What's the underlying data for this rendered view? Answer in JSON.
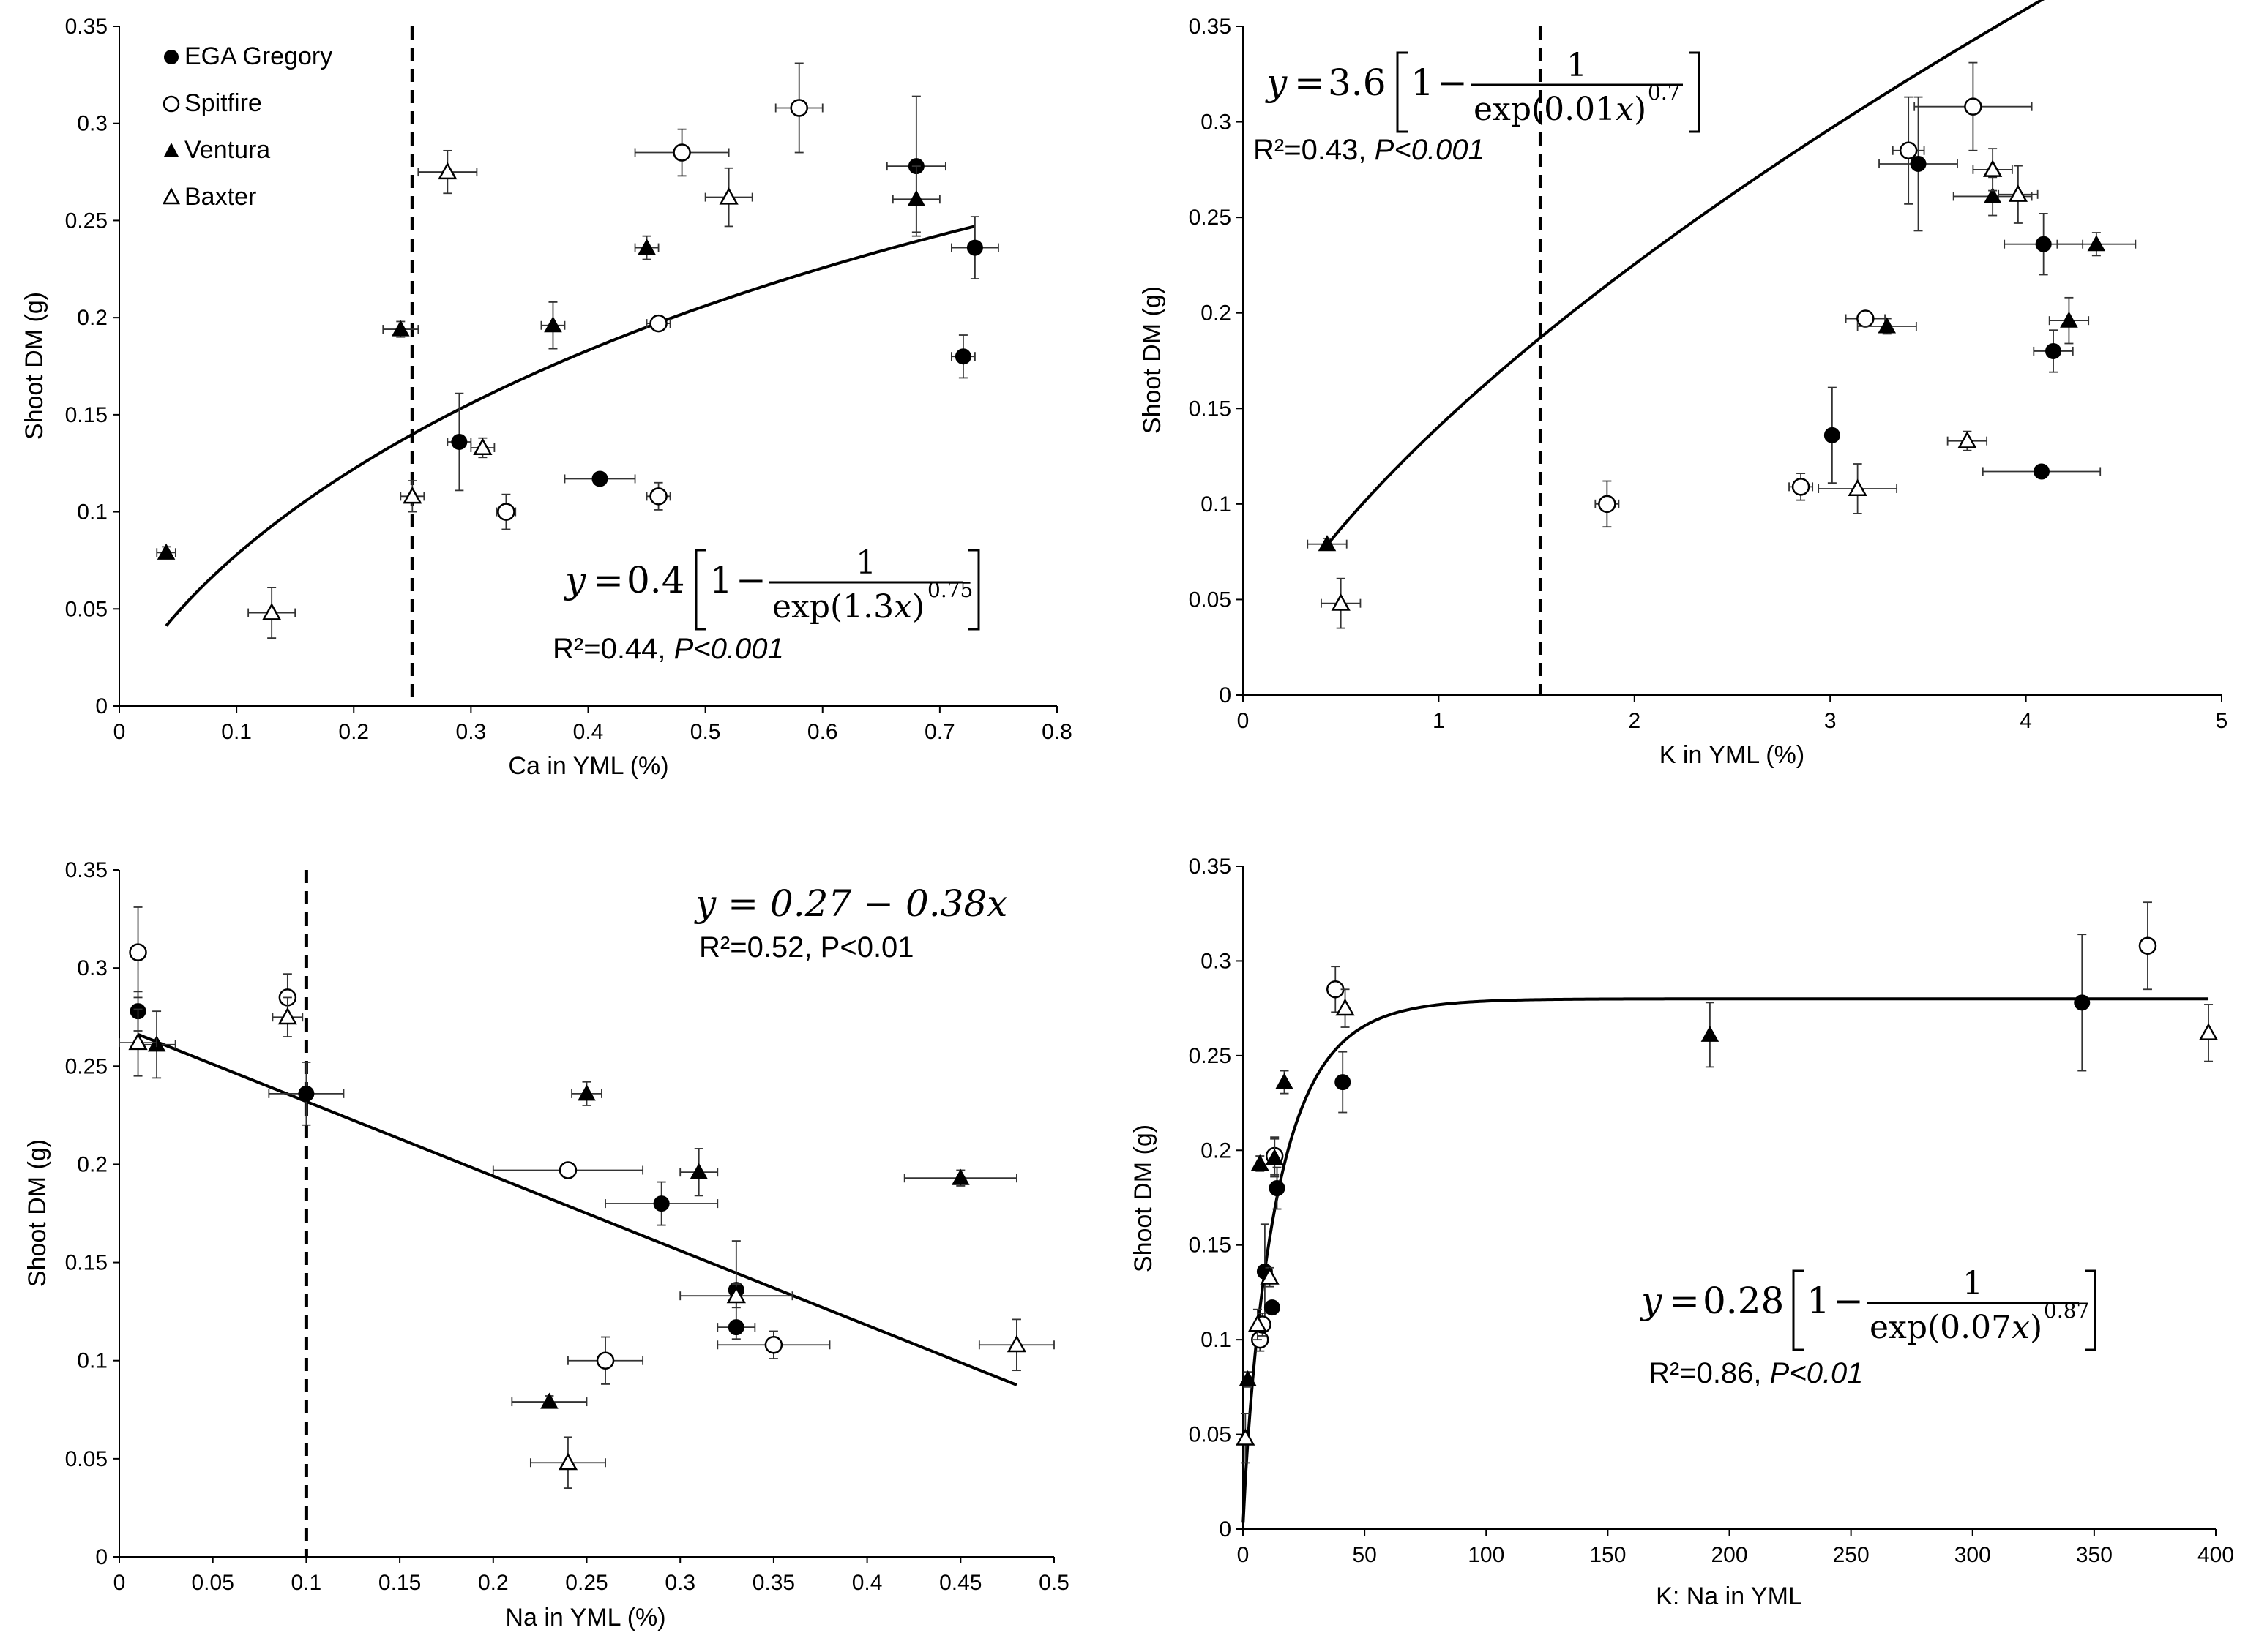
{
  "chart_data": [
    {
      "type": "scatter",
      "id": "ca",
      "title": "",
      "xlabel": "Ca in YML (%)",
      "ylabel": "Shoot DM (g)",
      "xlim": [
        0,
        0.8
      ],
      "ylim": [
        0,
        0.35
      ],
      "xticks": [
        0,
        0.1,
        0.2,
        0.3,
        0.4,
        0.5,
        0.6,
        0.7,
        0.8
      ],
      "xtick_labels": [
        "0",
        "0.1",
        "0.2",
        "0.3",
        "0.4",
        "0.5",
        "0.6",
        "0.7",
        "0.8"
      ],
      "yticks": [
        0,
        0.05,
        0.1,
        0.15,
        0.2,
        0.25,
        0.3,
        0.35
      ],
      "ytick_labels": [
        "0",
        "0.05",
        "0.1",
        "0.15",
        "0.2",
        "0.25",
        "0.3",
        "0.35"
      ],
      "vline": 0.25,
      "legend": true,
      "fit": {
        "model": "exp_sat",
        "a": 0.4,
        "b": 1.3,
        "c": 0.75,
        "x_range": [
          0.04,
          0.73
        ]
      },
      "equation": {
        "kind": "fraction",
        "lhs": "y",
        "coef": "0.4",
        "one": "1",
        "num": "1",
        "den_prefix": "exp(1.3",
        "den_var": "x",
        "den_suffix": ")",
        "power": "0.75"
      },
      "stat_r2": "R²=0.44, ",
      "stat_p": "P<0.001",
      "stat_p_italic": true,
      "series": [
        {
          "name": "EGA Gregory",
          "marker": "filled-circle",
          "points": [
            [
              0.29,
              0.136,
              0.01,
              0.025
            ],
            [
              0.41,
              0.117,
              0.03,
              0.002
            ],
            [
              0.68,
              0.278,
              0.025,
              0.036
            ],
            [
              0.73,
              0.236,
              0.02,
              0.016
            ],
            [
              0.72,
              0.18,
              0.01,
              0.011
            ]
          ]
        },
        {
          "name": "Spitfire",
          "marker": "open-circle",
          "points": [
            [
              0.33,
              0.1,
              0.008,
              0.009
            ],
            [
              0.46,
              0.108,
              0.01,
              0.007
            ],
            [
              0.46,
              0.197,
              0.01,
              0.003
            ],
            [
              0.48,
              0.285,
              0.04,
              0.012
            ],
            [
              0.58,
              0.308,
              0.02,
              0.023
            ]
          ]
        },
        {
          "name": "Ventura",
          "marker": "filled-triangle",
          "points": [
            [
              0.04,
              0.079,
              0.008,
              0.003
            ],
            [
              0.24,
              0.194,
              0.015,
              0.004
            ],
            [
              0.37,
              0.196,
              0.01,
              0.012
            ],
            [
              0.45,
              0.236,
              0.01,
              0.006
            ],
            [
              0.68,
              0.261,
              0.02,
              0.017
            ]
          ]
        },
        {
          "name": "Baxter",
          "marker": "open-triangle",
          "points": [
            [
              0.13,
              0.048,
              0.02,
              0.013
            ],
            [
              0.25,
              0.108,
              0.01,
              0.008
            ],
            [
              0.28,
              0.275,
              0.025,
              0.011
            ],
            [
              0.31,
              0.133,
              0.01,
              0.005
            ],
            [
              0.52,
              0.262,
              0.02,
              0.015
            ]
          ]
        }
      ]
    },
    {
      "type": "scatter",
      "id": "k",
      "title": "",
      "xlabel": "K in YML (%)",
      "ylabel": "Shoot DM (g)",
      "xlim": [
        0,
        5
      ],
      "ylim": [
        0,
        0.35
      ],
      "xticks": [
        0,
        1,
        2,
        3,
        4,
        5
      ],
      "xtick_labels": [
        "0",
        "1",
        "2",
        "3",
        "4",
        "5"
      ],
      "yticks": [
        0,
        0.05,
        0.1,
        0.15,
        0.2,
        0.25,
        0.3,
        0.35
      ],
      "ytick_labels": [
        "0",
        "0.05",
        "0.1",
        "0.15",
        "0.2",
        "0.25",
        "0.3",
        "0.35"
      ],
      "vline": 1.52,
      "legend": false,
      "fit": {
        "model": "exp_sat",
        "a": 3.6,
        "b": 0.01,
        "c": 0.7,
        "x_range": [
          0.42,
          4.35
        ]
      },
      "equation": {
        "kind": "fraction",
        "lhs": "y",
        "coef": "3.6",
        "one": "1",
        "num": "1",
        "den_prefix": "exp(0.01",
        "den_var": "x",
        "den_suffix": ")",
        "power": "0.7"
      },
      "stat_r2": "R²=0.43, ",
      "stat_p": "P<0.001",
      "stat_p_italic": true,
      "series": [
        {
          "name": "EGA Gregory",
          "marker": "filled-circle",
          "points": [
            [
              3.01,
              0.136,
              0.0,
              0.025
            ],
            [
              3.45,
              0.278,
              0.2,
              0.035
            ],
            [
              4.09,
              0.236,
              0.2,
              0.016
            ],
            [
              4.14,
              0.18,
              0.1,
              0.011
            ],
            [
              4.08,
              0.117,
              0.3,
              0.002
            ]
          ]
        },
        {
          "name": "Spitfire",
          "marker": "open-circle",
          "points": [
            [
              1.86,
              0.1,
              0.06,
              0.012
            ],
            [
              2.85,
              0.109,
              0.06,
              0.007
            ],
            [
              3.18,
              0.197,
              0.1,
              0.003
            ],
            [
              3.4,
              0.285,
              0.08,
              0.028
            ],
            [
              3.73,
              0.308,
              0.3,
              0.023
            ]
          ]
        },
        {
          "name": "Ventura",
          "marker": "filled-triangle",
          "points": [
            [
              0.43,
              0.079,
              0.1,
              0.003
            ],
            [
              3.29,
              0.193,
              0.15,
              0.004
            ],
            [
              3.83,
              0.261,
              0.2,
              0.01
            ],
            [
              4.22,
              0.196,
              0.1,
              0.012
            ],
            [
              4.36,
              0.236,
              0.2,
              0.006
            ]
          ]
        },
        {
          "name": "Baxter",
          "marker": "open-triangle",
          "points": [
            [
              0.5,
              0.048,
              0.1,
              0.013
            ],
            [
              3.14,
              0.108,
              0.2,
              0.013
            ],
            [
              3.7,
              0.133,
              0.1,
              0.005
            ],
            [
              3.83,
              0.275,
              0.1,
              0.011
            ],
            [
              3.96,
              0.262,
              0.1,
              0.015
            ]
          ]
        }
      ]
    },
    {
      "type": "scatter",
      "id": "na",
      "title": "",
      "xlabel": "Na in YML (%)",
      "ylabel": "Shoot DM (g)",
      "xlim": [
        0,
        0.5
      ],
      "ylim": [
        0,
        0.35
      ],
      "xticks": [
        0,
        0.05,
        0.1,
        0.15,
        0.2,
        0.25,
        0.3,
        0.35,
        0.4,
        0.45,
        0.5
      ],
      "xtick_labels": [
        "0",
        "0.05",
        "0.1",
        "0.15",
        "0.2",
        "0.25",
        "0.3",
        "0.35",
        "0.4",
        "0.45",
        "0.5"
      ],
      "yticks": [
        0,
        0.05,
        0.1,
        0.15,
        0.2,
        0.25,
        0.3,
        0.35
      ],
      "ytick_labels": [
        "0",
        "0.05",
        "0.1",
        "0.15",
        "0.2",
        "0.25",
        "0.3",
        "0.35"
      ],
      "vline": 0.1,
      "legend": false,
      "fit": {
        "model": "linear",
        "intercept": 0.27,
        "slope": -0.38,
        "x_range": [
          0.01,
          0.48
        ]
      },
      "equation": {
        "kind": "linear",
        "text": "y = 0.27 − 0.38x"
      },
      "stat_r2": "R²=0.52, ",
      "stat_p": "P<0.01",
      "stat_p_italic": false,
      "series": [
        {
          "name": "EGA Gregory",
          "marker": "filled-circle",
          "points": [
            [
              0.01,
              0.278,
              0.0,
              0.01
            ],
            [
              0.1,
              0.236,
              0.02,
              0.016
            ],
            [
              0.29,
              0.18,
              0.03,
              0.011
            ],
            [
              0.33,
              0.136,
              0.0,
              0.025
            ],
            [
              0.33,
              0.117,
              0.01,
              0.002
            ]
          ]
        },
        {
          "name": "Spitfire",
          "marker": "open-circle",
          "points": [
            [
              0.01,
              0.308,
              0.0,
              0.023
            ],
            [
              0.09,
              0.285,
              0.0,
              0.012
            ],
            [
              0.24,
              0.197,
              0.04,
              0.0
            ],
            [
              0.26,
              0.1,
              0.02,
              0.012
            ],
            [
              0.35,
              0.108,
              0.03,
              0.007
            ]
          ]
        },
        {
          "name": "Ventura",
          "marker": "filled-triangle",
          "points": [
            [
              0.02,
              0.261,
              0.01,
              0.017
            ],
            [
              0.23,
              0.079,
              0.02,
              0.003
            ],
            [
              0.25,
              0.236,
              0.008,
              0.006
            ],
            [
              0.31,
              0.196,
              0.01,
              0.012
            ],
            [
              0.45,
              0.193,
              0.03,
              0.004
            ]
          ]
        },
        {
          "name": "Baxter",
          "marker": "open-triangle",
          "points": [
            [
              0.01,
              0.262,
              0.01,
              0.017
            ],
            [
              0.09,
              0.275,
              0.008,
              0.01
            ],
            [
              0.24,
              0.048,
              0.02,
              0.013
            ],
            [
              0.33,
              0.133,
              0.03,
              0.006
            ],
            [
              0.48,
              0.108,
              0.02,
              0.013
            ]
          ]
        }
      ]
    },
    {
      "type": "scatter",
      "id": "kna",
      "title": "",
      "xlabel": "K: Na in YML",
      "ylabel": "Shoot DM (g)",
      "xlim": [
        0,
        400
      ],
      "ylim": [
        0,
        0.35
      ],
      "xticks": [
        0,
        50,
        100,
        150,
        200,
        250,
        300,
        350,
        400
      ],
      "xtick_labels": [
        "0",
        "50",
        "100",
        "150",
        "200",
        "250",
        "300",
        "350",
        "400"
      ],
      "yticks": [
        0,
        0.05,
        0.1,
        0.15,
        0.2,
        0.25,
        0.3,
        0.35
      ],
      "ytick_labels": [
        "0",
        "0.05",
        "0.1",
        "0.15",
        "0.2",
        "0.25",
        "0.3",
        "0.35"
      ],
      "vline": null,
      "legend": false,
      "fit": {
        "model": "exp_sat",
        "a": 0.28,
        "b": 0.07,
        "c": 0.87,
        "x_range": [
          0.1,
          397
        ]
      },
      "equation": {
        "kind": "fraction",
        "lhs": "y",
        "coef": "0.28",
        "one": "1",
        "num": "1",
        "den_prefix": "exp(0.07",
        "den_var": "x",
        "den_suffix": ")",
        "power": "0.87"
      },
      "stat_r2": "R²=0.86, ",
      "stat_p": "P<0.01",
      "stat_p_italic": true,
      "series": [
        {
          "name": "EGA Gregory",
          "marker": "filled-circle",
          "points": [
            [
              9,
              0.136,
              0,
              0.025
            ],
            [
              12,
              0.117,
              0,
              0.003
            ],
            [
              14,
              0.18,
              0,
              0.011
            ],
            [
              41,
              0.236,
              0,
              0.016
            ],
            [
              345,
              0.278,
              0,
              0.036
            ]
          ]
        },
        {
          "name": "Spitfire",
          "marker": "open-circle",
          "points": [
            [
              7,
              0.1,
              0,
              0.006
            ],
            [
              8,
              0.108,
              0,
              0.006
            ],
            [
              13,
              0.197,
              0,
              0.01
            ],
            [
              38,
              0.285,
              0,
              0.012
            ],
            [
              372,
              0.308,
              0,
              0.023
            ]
          ]
        },
        {
          "name": "Ventura",
          "marker": "filled-triangle",
          "points": [
            [
              2,
              0.079,
              0,
              0.004
            ],
            [
              7,
              0.193,
              0,
              0.004
            ],
            [
              17,
              0.236,
              0,
              0.006
            ],
            [
              192,
              0.261,
              0,
              0.017
            ],
            [
              13,
              0.196,
              0,
              0.01
            ]
          ]
        },
        {
          "name": "Baxter",
          "marker": "open-triangle",
          "points": [
            [
              1,
              0.048,
              0,
              0.013
            ],
            [
              6,
              0.108,
              0,
              0.008
            ],
            [
              11,
              0.133,
              0,
              0.005
            ],
            [
              42,
              0.275,
              0,
              0.01
            ],
            [
              397,
              0.262,
              0,
              0.015
            ]
          ]
        }
      ]
    }
  ]
}
